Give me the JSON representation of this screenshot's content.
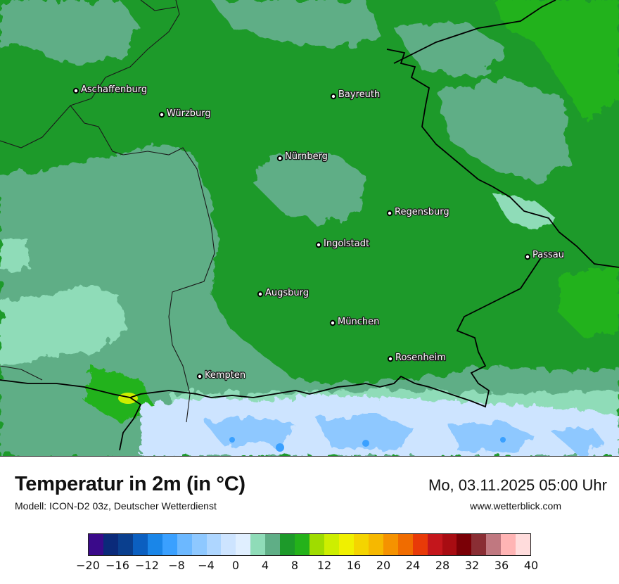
{
  "title": "Temperatur in 2m (in °C)",
  "model_line": "Modell: ICON-D2 03z, Deutscher Wetterdienst",
  "valid_time": "Mo, 03.11.2025 05:00 Uhr",
  "website": "www.wetterblick.com",
  "cities": [
    {
      "name": "Aschaffenburg"
    },
    {
      "name": "Würzburg"
    },
    {
      "name": "Bayreuth"
    },
    {
      "name": "Nürnberg"
    },
    {
      "name": "Regensburg"
    },
    {
      "name": "Ingolstadt"
    },
    {
      "name": "Passau"
    },
    {
      "name": "Augsburg"
    },
    {
      "name": "München"
    },
    {
      "name": "Rosenheim"
    },
    {
      "name": "Kempten"
    }
  ],
  "legend": {
    "ticks": [
      "−20",
      "−16",
      "−12",
      "−8",
      "−4",
      "0",
      "4",
      "8",
      "12",
      "16",
      "20",
      "24",
      "28",
      "32",
      "36",
      "40"
    ],
    "min": -20,
    "max": 40,
    "step": 2,
    "colors": [
      "#3a0a8a",
      "#0b2a7a",
      "#0a3f8e",
      "#0b5fc0",
      "#1a86e8",
      "#3aa0ff",
      "#6cb8ff",
      "#8ec8ff",
      "#aed6ff",
      "#cde4ff",
      "#e0efff",
      "#8fdcb8",
      "#5fae86",
      "#1d9a2a",
      "#24b21a",
      "#9fdc00",
      "#cdee00",
      "#f0f000",
      "#f4d400",
      "#f6b800",
      "#f59200",
      "#f06c00",
      "#e83a08",
      "#c4161c",
      "#a80c12",
      "#7a0006",
      "#8a2e34",
      "#c07880",
      "#ffb4b4",
      "#ffdcdc"
    ]
  }
}
